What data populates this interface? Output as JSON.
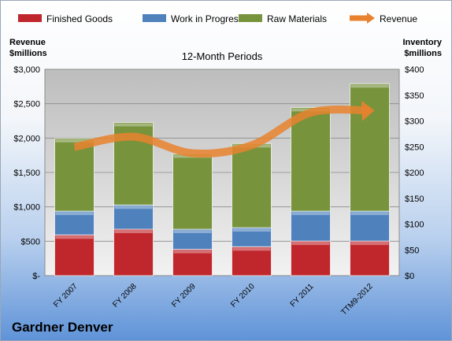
{
  "company": "Gardner Denver",
  "chart_data": {
    "type": "bar",
    "stacked": true,
    "title": "12-Month Periods",
    "ylabel_left": [
      "Revenue",
      "$millions"
    ],
    "ylabel_right": [
      "Inventory",
      "$millions"
    ],
    "categories": [
      "FY 2007",
      "FY 2008",
      "FY 2009",
      "FY 2010",
      "FY 2011",
      "TTM9-2012"
    ],
    "ylim_left": [
      0,
      3000
    ],
    "yticks_left": [
      "$-",
      "$500",
      "$1,000",
      "$1,500",
      "$2,000",
      "$2,500",
      "$3,000"
    ],
    "ylim_right": [
      0,
      400
    ],
    "yticks_right": [
      "$0",
      "$50",
      "$100",
      "$150",
      "$200",
      "$250",
      "$300",
      "$350",
      "$400"
    ],
    "legend_position": "top",
    "series": [
      {
        "name": "Finished Goods",
        "axis": "right",
        "color": "#c0272d",
        "values": [
          79,
          90,
          51,
          56,
          67,
          67
        ]
      },
      {
        "name": "Work in Progress",
        "axis": "right",
        "color": "#4f81bd",
        "values": [
          46,
          47,
          39,
          37,
          58,
          58
        ]
      },
      {
        "name": "Raw Materials",
        "axis": "right",
        "color": "#77933c",
        "values": [
          141,
          160,
          146,
          163,
          201,
          247
        ]
      },
      {
        "name": "Revenue",
        "axis": "left",
        "type": "line",
        "color": "#e8822e",
        "values": [
          1870,
          2020,
          1780,
          1895,
          2370,
          2400
        ]
      }
    ]
  }
}
